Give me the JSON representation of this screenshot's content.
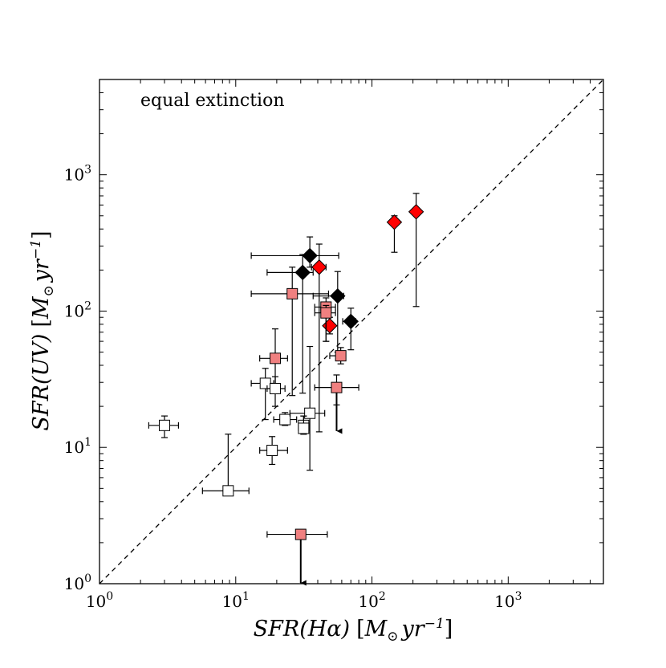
{
  "chart_data": {
    "type": "scatter",
    "annotation": "equal extinction",
    "xscale": "log",
    "yscale": "log",
    "xlim": [
      1,
      5000
    ],
    "ylim": [
      1,
      5000
    ],
    "x_ticks": [
      {
        "value": 1,
        "base": "10",
        "exp": "0"
      },
      {
        "value": 10,
        "base": "10",
        "exp": "1"
      },
      {
        "value": 100,
        "base": "10",
        "exp": "2"
      },
      {
        "value": 1000,
        "base": "10",
        "exp": "3"
      }
    ],
    "y_ticks": [
      {
        "value": 1,
        "base": "10",
        "exp": "0"
      },
      {
        "value": 10,
        "base": "10",
        "exp": "1"
      },
      {
        "value": 100,
        "base": "10",
        "exp": "2"
      },
      {
        "value": 1000,
        "base": "10",
        "exp": "3"
      }
    ],
    "xlabel": {
      "main": "SFR(Hα)",
      "unit_open": "[M",
      "unit_sub": "⊙",
      "unit_mid": " yr",
      "unit_sup": "−1",
      "unit_close": "]"
    },
    "ylabel": {
      "main": "SFR(UV)",
      "unit_open": "[M",
      "unit_sub": "⊙",
      "unit_mid": " yr",
      "unit_sup": "−1",
      "unit_close": "]"
    },
    "reference_line": {
      "style": "dashed",
      "relation": "y = x"
    },
    "series": [
      {
        "marker": "diamond",
        "color": "#000000",
        "points": [
          {
            "x": 35,
            "y": 255,
            "xerr": [
              13,
              57
            ],
            "yerr": [
              210,
              350
            ]
          },
          {
            "x": 31,
            "y": 192,
            "xerr": [
              17,
              37
            ],
            "yerr": [
              25,
              260
            ]
          },
          {
            "x": 56,
            "y": 129,
            "xerr": [
              37,
              62
            ],
            "yerr": [
              50,
              195
            ]
          },
          {
            "x": 70,
            "y": 84,
            "xerr": [
              61,
              76
            ],
            "yerr": [
              52,
              105
            ]
          }
        ]
      },
      {
        "marker": "diamond",
        "color": "#ff0000",
        "points": [
          {
            "x": 41,
            "y": 210,
            "xerr": [
              36,
              46
            ],
            "yerr": [
              13,
              310
            ]
          },
          {
            "x": 146,
            "y": 449,
            "xerr": [
              140,
              151
            ],
            "yerr": [
              270,
              500
            ]
          },
          {
            "x": 211,
            "y": 535,
            "xerr": [
              202,
              215
            ],
            "yerr": [
              108,
              730
            ]
          },
          {
            "x": 49,
            "y": 78,
            "xerr": [
              46,
              52
            ],
            "yerr": [
              68,
              90
            ]
          }
        ]
      },
      {
        "marker": "square",
        "color": "#f08080",
        "points": [
          {
            "x": 26,
            "y": 134,
            "xerr": [
              13,
              48
            ],
            "yerr": [
              24,
              210
            ]
          },
          {
            "x": 46,
            "y": 107,
            "xerr": [
              38,
              54
            ],
            "yerr": [
              60,
              125
            ]
          },
          {
            "x": 46,
            "y": 97,
            "xerr": [
              38,
              54
            ],
            "yerr": [
              60,
              110
            ]
          },
          {
            "x": 19.5,
            "y": 45,
            "xerr": [
              15,
              24
            ],
            "yerr": [
              25,
              74
            ]
          },
          {
            "x": 59,
            "y": 47,
            "xerr": [
              49,
              64
            ],
            "yerr": [
              41,
              54
            ]
          },
          {
            "x": 55,
            "y": 27.5,
            "xerr": [
              38,
              80
            ],
            "yerr": [
              20.5,
              34
            ],
            "upper_limit": true,
            "limit_to": 13
          },
          {
            "x": 30,
            "y": 2.3,
            "xerr": [
              17,
              47
            ],
            "yerr": [
              2.3,
              2.3
            ],
            "upper_limit": true,
            "limit_to": 1
          }
        ]
      },
      {
        "marker": "square",
        "color": "#ffffff",
        "points": [
          {
            "x": 16.5,
            "y": 29.5,
            "xerr": [
              13,
              19
            ],
            "yerr": [
              16,
              38
            ]
          },
          {
            "x": 19.5,
            "y": 27,
            "xerr": [
              17,
              23
            ],
            "yerr": [
              20,
              33
            ]
          },
          {
            "x": 23,
            "y": 16,
            "xerr": [
              19,
              28
            ],
            "yerr": [
              14.5,
              18
            ]
          },
          {
            "x": 35,
            "y": 17.8,
            "xerr": [
              25,
              45
            ],
            "yerr": [
              6.8,
              55
            ]
          },
          {
            "x": 31.5,
            "y": 14.5,
            "xerr": [
              29,
              34
            ],
            "yerr": [
              12.5,
              17
            ]
          },
          {
            "x": 31.5,
            "y": 13.8,
            "xerr": [
              29,
              34
            ],
            "yerr": [
              12.5,
              17
            ]
          },
          {
            "x": 18.5,
            "y": 9.5,
            "xerr": [
              15,
              24
            ],
            "yerr": [
              7.5,
              12
            ]
          },
          {
            "x": 3,
            "y": 14.5,
            "xerr": [
              2.3,
              3.8
            ],
            "yerr": [
              11.8,
              17
            ]
          },
          {
            "x": 8.8,
            "y": 4.8,
            "xerr": [
              5.7,
              12.5
            ],
            "yerr": [
              4.8,
              12.5
            ]
          }
        ]
      }
    ]
  }
}
